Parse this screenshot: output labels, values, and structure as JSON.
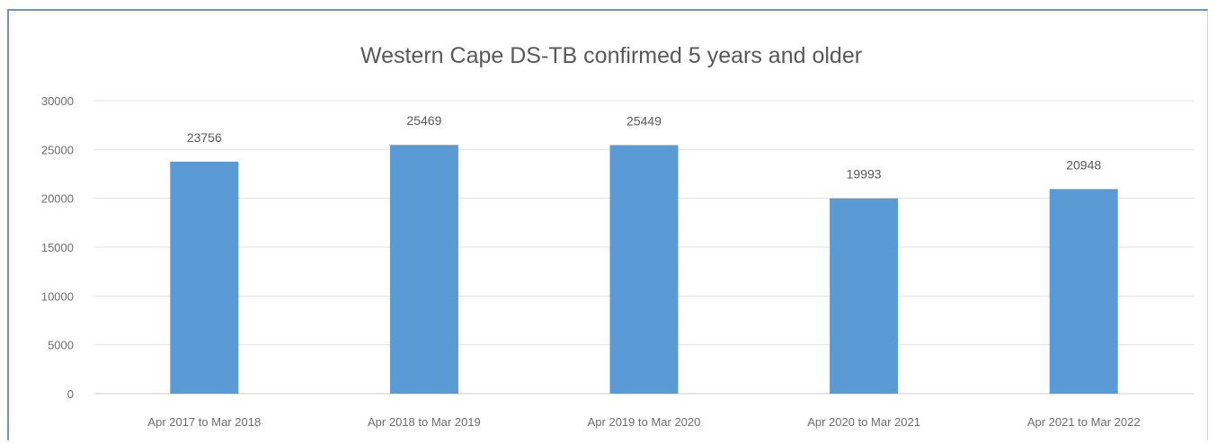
{
  "chart_data": {
    "type": "bar",
    "title": "Western Cape DS-TB confirmed 5 years and older",
    "categories": [
      "Apr 2017 to Mar 2018",
      "Apr 2018 to Mar 2019",
      "Apr 2019 to Mar 2020",
      "Apr 2020 to Mar 2021",
      "Apr 2021 to Mar 2022"
    ],
    "values": [
      23756,
      25469,
      25449,
      19993,
      20948
    ],
    "data_labels": [
      "23756",
      "25469",
      "25449",
      "19993",
      "20948"
    ],
    "xlabel": "",
    "ylabel": "",
    "ylim": [
      0,
      30000
    ],
    "yticks": [
      0,
      5000,
      10000,
      15000,
      20000,
      25000,
      30000
    ],
    "ytick_labels": [
      "0",
      "5000",
      "10000",
      "15000",
      "20000",
      "25000",
      "30000"
    ],
    "grid": true,
    "legend": "none",
    "bar_color": "#5b9bd5"
  }
}
